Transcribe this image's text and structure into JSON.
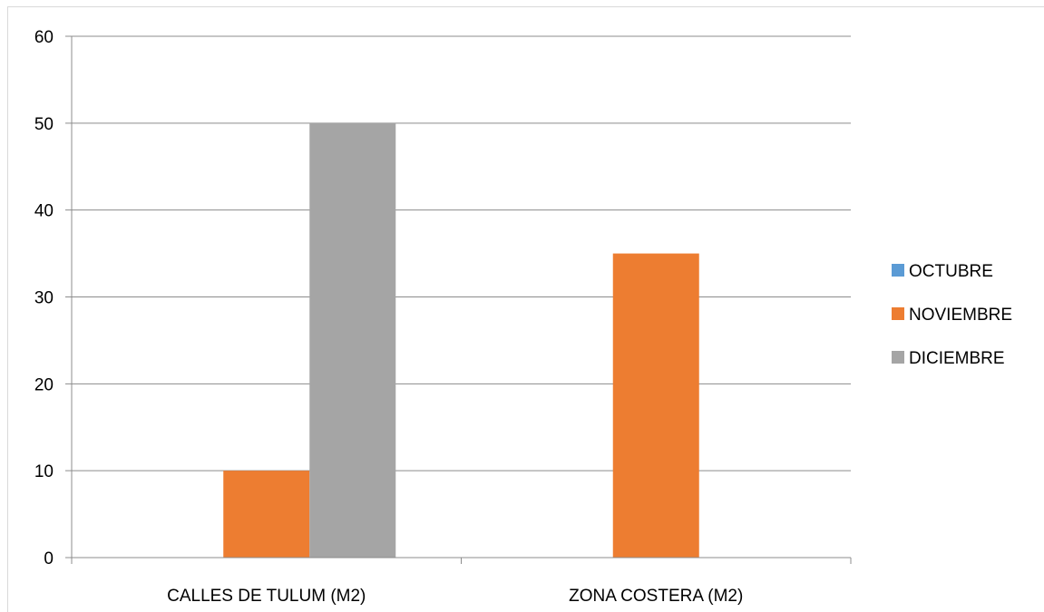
{
  "chart_data": {
    "type": "bar",
    "title": "",
    "xlabel": "",
    "ylabel": "",
    "categories": [
      "CALLES DE TULUM (M2)",
      "ZONA COSTERA (M2)"
    ],
    "series": [
      {
        "name": "OCTUBRE",
        "values": [
          0,
          0
        ],
        "color": "#5b9bd5"
      },
      {
        "name": "NOVIEMBRE",
        "values": [
          10,
          35
        ],
        "color": "#ed7d31"
      },
      {
        "name": "DICIEMBRE",
        "values": [
          50,
          0
        ],
        "color": "#a5a5a5"
      }
    ],
    "ylim": [
      0,
      60
    ],
    "yticks": [
      "0",
      "10",
      "20",
      "30",
      "40",
      "50",
      "60"
    ],
    "grid": true,
    "legend_position": "right",
    "gridline_color": "#8c8c8c",
    "axis_color": "#8c8c8c"
  }
}
